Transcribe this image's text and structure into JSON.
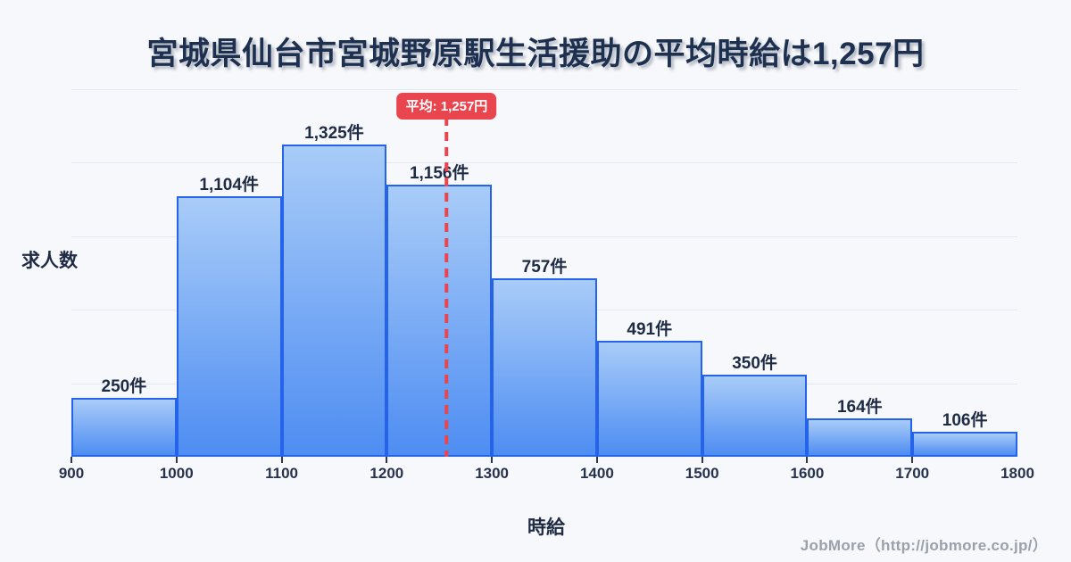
{
  "title": "宮城県仙台市宮城野原駅生活援助の平均時給は1,257円",
  "chart_data": {
    "type": "bar",
    "title": "宮城県仙台市宮城野原駅生活援助の平均時給は1,257円",
    "xlabel": "時給",
    "ylabel": "求人数",
    "bin_edges": [
      900,
      1000,
      1100,
      1200,
      1300,
      1400,
      1500,
      1600,
      1700,
      1800
    ],
    "values": [
      250,
      1104,
      1325,
      1156,
      757,
      491,
      350,
      164,
      106
    ],
    "bar_labels": [
      "250件",
      "1,104件",
      "1,325件",
      "1,156件",
      "757件",
      "491件",
      "350件",
      "164件",
      "106件"
    ],
    "x_tick_labels": [
      "900",
      "1000",
      "1100",
      "1200",
      "1300",
      "1400",
      "1500",
      "1600",
      "1700",
      "1800"
    ],
    "xlim": [
      900,
      1800
    ],
    "ylim": [
      0,
      1560
    ],
    "grid": "horizontal",
    "legend": null,
    "average_line": {
      "value": 1257,
      "label": "平均: 1,257円"
    },
    "colors": {
      "background": "#f7f8fb",
      "bar_fill_top": "#a9ccf8",
      "bar_fill_bottom": "#4e8df2",
      "bar_border": "#2563eb",
      "average": "#e8454f",
      "title_text": "#1e3050",
      "label_text": "#1e2b45",
      "grid": "#e4e8f1"
    }
  },
  "footer": {
    "credit": "JobMore（http://jobmore.co.jp/）"
  }
}
